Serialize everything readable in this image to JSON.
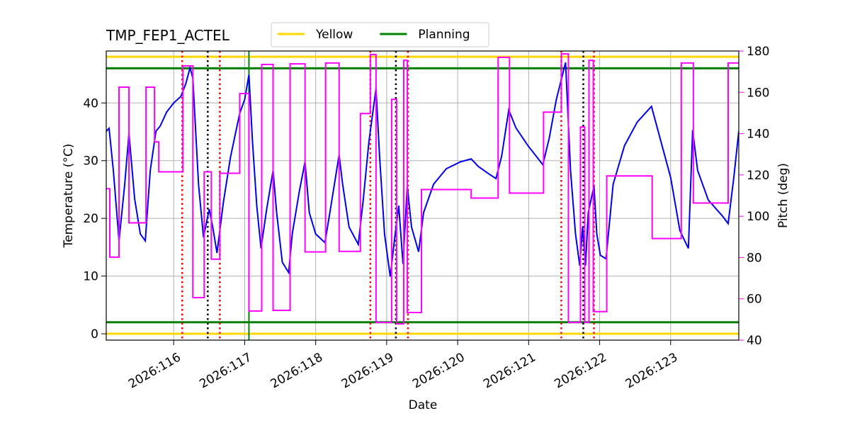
{
  "chart_data": {
    "type": "line",
    "title": "TMP_FEP1_ACTEL",
    "x_label": "Date",
    "y_label": "Temperature (°C)",
    "y2_label": "Pitch (deg)",
    "xlim": [
      115.05,
      123.96
    ],
    "xticks": [
      {
        "value": 116,
        "label": "2026:116"
      },
      {
        "value": 117,
        "label": "2026:117"
      },
      {
        "value": 118,
        "label": "2026:118"
      },
      {
        "value": 119,
        "label": "2026:119"
      },
      {
        "value": 120,
        "label": "2026:120"
      },
      {
        "value": 121,
        "label": "2026:121"
      },
      {
        "value": 122,
        "label": "2026:122"
      },
      {
        "value": 123,
        "label": "2026:123"
      }
    ],
    "ylim": [
      -1.1,
      49
    ],
    "yticks": [
      0,
      10,
      20,
      30,
      40
    ],
    "y2lim": [
      40,
      180
    ],
    "y2ticks": [
      40,
      60,
      80,
      100,
      120,
      140,
      160,
      180
    ],
    "y2_color": "#ff00ff",
    "grid": true,
    "series": [
      {
        "color": "#0000ee",
        "x": [
          115.05,
          115.09,
          115.15,
          115.23,
          115.31,
          115.37,
          115.45,
          115.53,
          115.6,
          115.67,
          115.75,
          115.81,
          115.9,
          116.0,
          116.1,
          116.17,
          116.23,
          116.27,
          116.35,
          116.42,
          116.5,
          116.55,
          116.61,
          116.7,
          116.8,
          116.93,
          117.0,
          117.06,
          117.11,
          117.17,
          117.23,
          117.31,
          117.4,
          117.45,
          117.53,
          117.62,
          117.67,
          117.77,
          117.85,
          117.91,
          118.0,
          118.13,
          118.2,
          118.33,
          118.38,
          118.47,
          118.6,
          118.67,
          118.75,
          118.85,
          118.9,
          118.97,
          119.05,
          119.12,
          119.17,
          119.23,
          119.29,
          119.35,
          119.45,
          119.52,
          119.66,
          119.84,
          120.04,
          120.19,
          120.29,
          120.44,
          120.54,
          120.62,
          120.72,
          120.82,
          120.99,
          121.2,
          121.29,
          121.39,
          121.52,
          121.59,
          121.66,
          121.72,
          121.76,
          121.8,
          121.84,
          121.92,
          121.96,
          122.01,
          122.09,
          122.19,
          122.35,
          122.53,
          122.73,
          123.0,
          123.13,
          123.25,
          123.31,
          123.38,
          123.53,
          123.73,
          123.81,
          123.89,
          123.96
        ],
        "values": [
          35.1,
          35.6,
          28.3,
          16.1,
          25.9,
          34.7,
          23.4,
          17.3,
          16.1,
          28.3,
          35.1,
          36.0,
          38.4,
          40.0,
          41.1,
          43.3,
          46.1,
          44.3,
          25.9,
          16.7,
          21.6,
          18.5,
          14.0,
          22.8,
          30.6,
          38.2,
          40.6,
          44.9,
          33.3,
          22.2,
          14.8,
          21.6,
          28.3,
          21.0,
          12.4,
          10.6,
          17.3,
          24.7,
          29.8,
          21.0,
          17.3,
          15.8,
          21.0,
          31.0,
          25.9,
          18.5,
          15.5,
          23.2,
          33.3,
          42.5,
          30.8,
          17.3,
          9.9,
          17.3,
          22.2,
          12.1,
          25.6,
          18.5,
          14.2,
          21.0,
          25.9,
          28.6,
          29.8,
          30.3,
          29.0,
          27.7,
          26.9,
          30.8,
          38.8,
          35.7,
          32.6,
          29.3,
          33.9,
          40.6,
          47.0,
          28.3,
          17.3,
          11.8,
          18.5,
          11.8,
          21.0,
          25.6,
          17.3,
          13.6,
          13.0,
          25.9,
          32.6,
          36.7,
          39.4,
          27.1,
          17.9,
          14.8,
          35.3,
          28.3,
          23.2,
          20.4,
          19.1,
          27.1,
          35.1
        ]
      },
      {
        "color": "#ff00ff",
        "axis": "y2",
        "x": [
          115.05,
          115.1,
          115.1,
          115.23,
          115.23,
          115.37,
          115.37,
          115.61,
          115.61,
          115.73,
          115.73,
          115.79,
          115.79,
          116.13,
          116.13,
          116.27,
          116.27,
          116.43,
          116.43,
          116.53,
          116.53,
          116.65,
          116.65,
          116.93,
          116.93,
          117.06,
          117.06,
          117.24,
          117.24,
          117.4,
          117.4,
          117.64,
          117.64,
          117.85,
          117.85,
          118.14,
          118.14,
          118.33,
          118.33,
          118.63,
          118.63,
          118.77,
          118.77,
          118.85,
          118.85,
          119.07,
          119.07,
          119.14,
          119.14,
          119.24,
          119.24,
          119.29,
          119.29,
          119.49,
          119.49,
          120.19,
          120.19,
          120.57,
          120.57,
          120.73,
          120.73,
          121.21,
          121.21,
          121.46,
          121.46,
          121.56,
          121.56,
          121.73,
          121.73,
          121.79,
          121.79,
          121.85,
          121.85,
          121.91,
          121.91,
          122.1,
          122.1,
          122.74,
          122.74,
          123.15,
          123.15,
          123.32,
          123.32,
          123.81,
          123.81,
          123.96
        ],
        "values": [
          113.3,
          113.3,
          80.2,
          80.2,
          162.5,
          162.5,
          96.8,
          96.8,
          162.5,
          162.5,
          136,
          136,
          121.5,
          121.5,
          172.8,
          172.8,
          60.6,
          60.6,
          121.5,
          121.5,
          79.2,
          79.2,
          120.8,
          120.8,
          159.4,
          159.4,
          54.1,
          54.1,
          173.5,
          173.5,
          54.4,
          54.4,
          173.8,
          173.8,
          82.7,
          82.7,
          174.2,
          174.2,
          83,
          83,
          149.7,
          149.7,
          178.3,
          178.3,
          48.6,
          48.6,
          156.6,
          156.6,
          47.9,
          47.9,
          175.5,
          175.5,
          53.4,
          53.4,
          112.9,
          112.9,
          108.8,
          108.8,
          176.9,
          176.9,
          111.2,
          111.2,
          150.4,
          150.4,
          178.6,
          178.6,
          48.6,
          48.6,
          143.2,
          143.2,
          48.6,
          48.6,
          175.5,
          175.5,
          53.8,
          53.8,
          119.5,
          119.5,
          89.2,
          89.2,
          174.2,
          174.2,
          106.4,
          106.4,
          174.2,
          174.2
        ]
      }
    ],
    "hlines": [
      {
        "name": "Yellow",
        "color": "#ffd700",
        "values": [
          0,
          48
        ]
      },
      {
        "name": "Planning",
        "color": "#008000",
        "values": [
          2,
          46
        ]
      }
    ],
    "vlines": [
      {
        "color": "#ff0000",
        "style": "dotted",
        "x": [
          116.12,
          116.65,
          118.77,
          119.3,
          121.46,
          121.92
        ]
      },
      {
        "color": "#000000",
        "style": "dotted",
        "x": [
          116.48,
          119.13,
          121.77
        ]
      },
      {
        "color": "#008000",
        "style": "solid",
        "x": [
          117.06
        ]
      }
    ],
    "legend": "top"
  }
}
